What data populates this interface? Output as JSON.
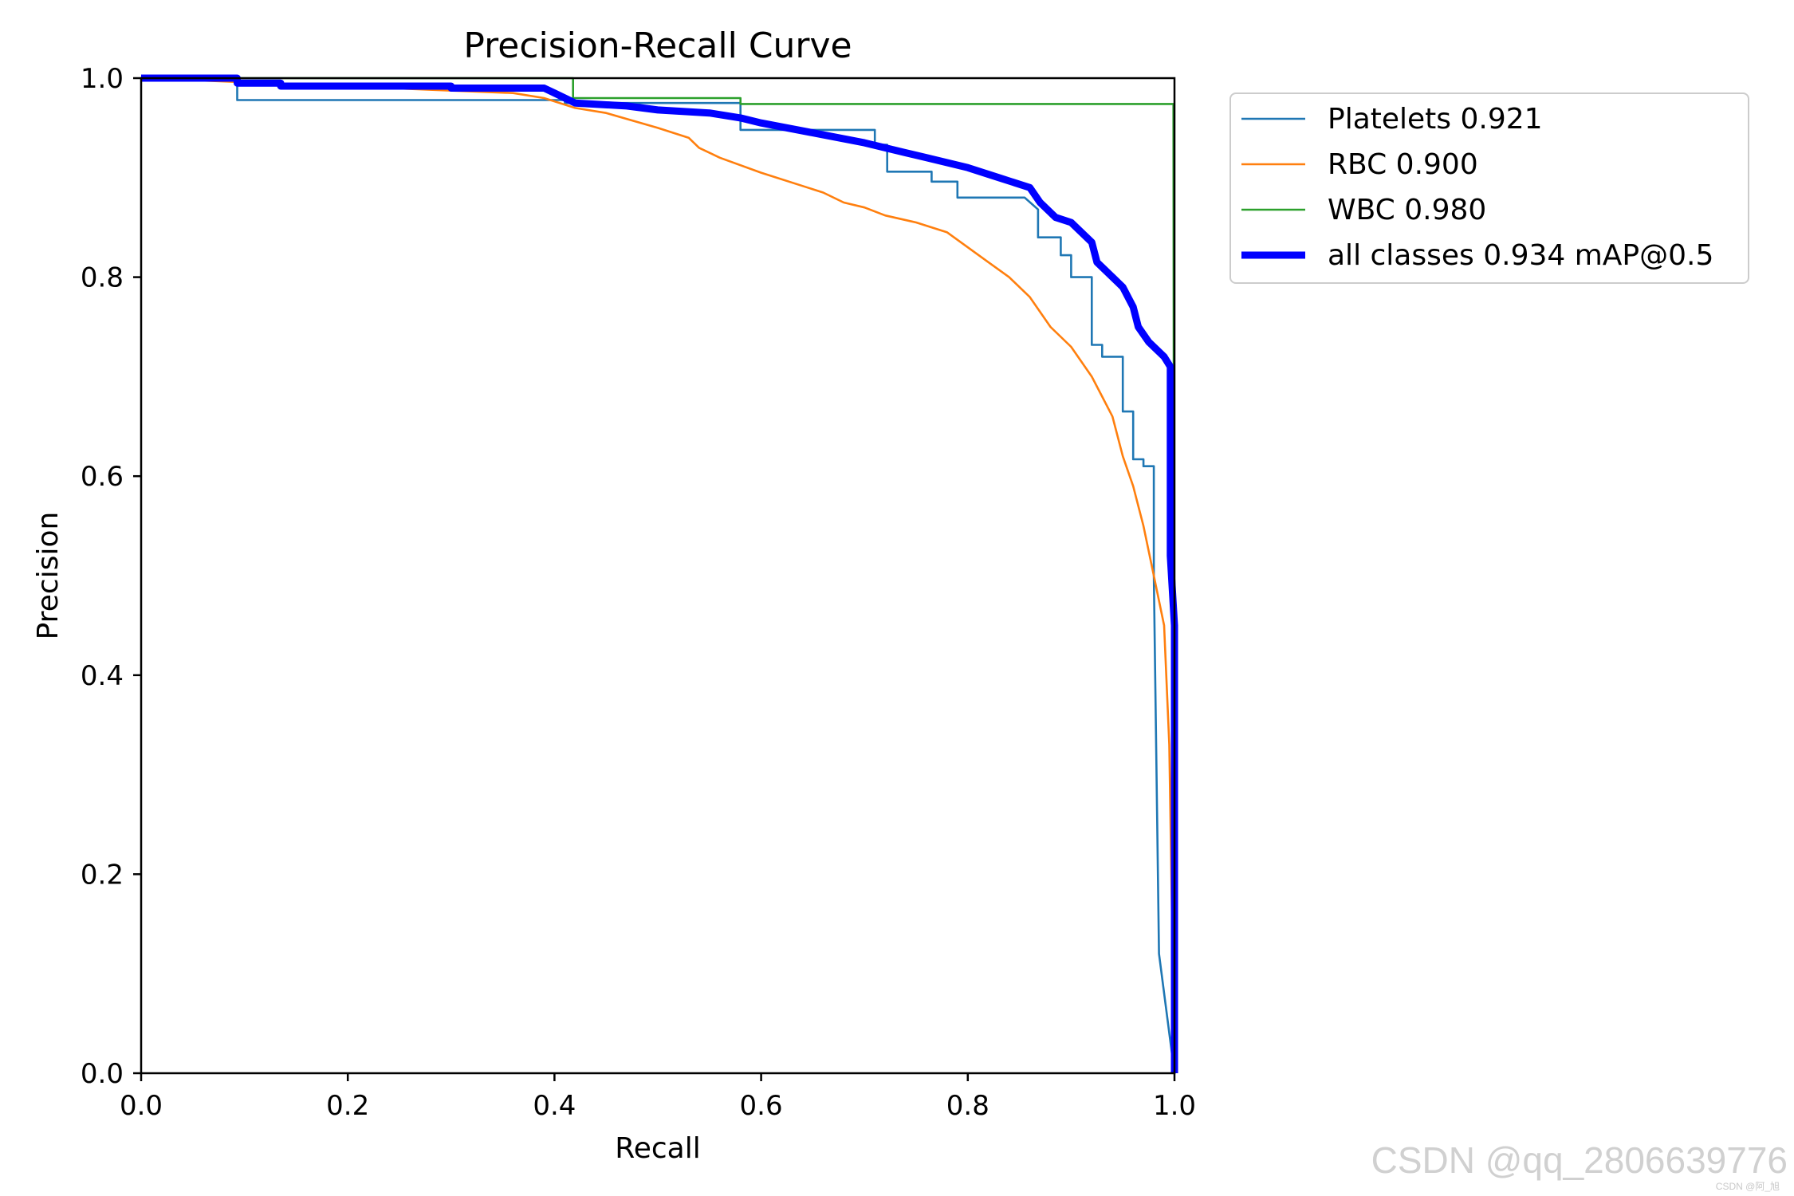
{
  "chart_data": {
    "type": "line",
    "title": "Precision-Recall Curve",
    "xlabel": "Recall",
    "ylabel": "Precision",
    "xlim": [
      0,
      1
    ],
    "ylim": [
      0,
      1
    ],
    "x_ticks": [
      "0.0",
      "0.2",
      "0.4",
      "0.6",
      "0.8",
      "1.0"
    ],
    "y_ticks": [
      "0.0",
      "0.2",
      "0.4",
      "0.6",
      "0.8",
      "1.0"
    ],
    "grid": false,
    "legend_position": "outside-top-right",
    "series": [
      {
        "name": "Platelets 0.921",
        "color": "#1f77b4",
        "width": "thin",
        "points": [
          [
            0,
            1.0
          ],
          [
            0.093,
            1.0
          ],
          [
            0.093,
            0.978
          ],
          [
            0.41,
            0.978
          ],
          [
            0.41,
            0.975
          ],
          [
            0.58,
            0.975
          ],
          [
            0.58,
            0.948
          ],
          [
            0.71,
            0.948
          ],
          [
            0.71,
            0.933
          ],
          [
            0.722,
            0.933
          ],
          [
            0.722,
            0.906
          ],
          [
            0.765,
            0.906
          ],
          [
            0.765,
            0.896
          ],
          [
            0.79,
            0.896
          ],
          [
            0.79,
            0.88
          ],
          [
            0.855,
            0.88
          ],
          [
            0.868,
            0.868
          ],
          [
            0.868,
            0.84
          ],
          [
            0.89,
            0.84
          ],
          [
            0.89,
            0.822
          ],
          [
            0.9,
            0.822
          ],
          [
            0.9,
            0.8
          ],
          [
            0.92,
            0.8
          ],
          [
            0.92,
            0.732
          ],
          [
            0.93,
            0.732
          ],
          [
            0.93,
            0.72
          ],
          [
            0.95,
            0.72
          ],
          [
            0.95,
            0.665
          ],
          [
            0.96,
            0.665
          ],
          [
            0.96,
            0.617
          ],
          [
            0.97,
            0.617
          ],
          [
            0.97,
            0.61
          ],
          [
            0.98,
            0.61
          ],
          [
            0.98,
            0.5
          ],
          [
            0.985,
            0.12
          ],
          [
            1.0,
            0.0
          ]
        ]
      },
      {
        "name": "RBC 0.900",
        "color": "#ff7f0e",
        "width": "thin",
        "points": [
          [
            0,
            1.0
          ],
          [
            0.36,
            0.985
          ],
          [
            0.39,
            0.98
          ],
          [
            0.42,
            0.97
          ],
          [
            0.45,
            0.965
          ],
          [
            0.5,
            0.95
          ],
          [
            0.53,
            0.94
          ],
          [
            0.54,
            0.93
          ],
          [
            0.56,
            0.92
          ],
          [
            0.6,
            0.905
          ],
          [
            0.66,
            0.885
          ],
          [
            0.68,
            0.875
          ],
          [
            0.7,
            0.87
          ],
          [
            0.72,
            0.862
          ],
          [
            0.75,
            0.855
          ],
          [
            0.78,
            0.845
          ],
          [
            0.8,
            0.83
          ],
          [
            0.82,
            0.815
          ],
          [
            0.84,
            0.8
          ],
          [
            0.86,
            0.78
          ],
          [
            0.87,
            0.765
          ],
          [
            0.88,
            0.75
          ],
          [
            0.9,
            0.73
          ],
          [
            0.91,
            0.715
          ],
          [
            0.92,
            0.7
          ],
          [
            0.93,
            0.68
          ],
          [
            0.94,
            0.66
          ],
          [
            0.95,
            0.62
          ],
          [
            0.96,
            0.59
          ],
          [
            0.97,
            0.55
          ],
          [
            0.98,
            0.5
          ],
          [
            0.99,
            0.45
          ],
          [
            0.995,
            0.33
          ],
          [
            1.0,
            0.0
          ]
        ]
      },
      {
        "name": "WBC 0.980",
        "color": "#2ca02c",
        "width": "thin",
        "points": [
          [
            0,
            1.0
          ],
          [
            0.418,
            1.0
          ],
          [
            0.418,
            0.98
          ],
          [
            0.58,
            0.98
          ],
          [
            0.58,
            0.974
          ],
          [
            0.999,
            0.974
          ],
          [
            1.0,
            0.0
          ]
        ]
      },
      {
        "name": "all classes 0.934 mAP@0.5",
        "color": "#0000ff",
        "width": "thick",
        "points": [
          [
            0,
            1.0
          ],
          [
            0.093,
            1.0
          ],
          [
            0.093,
            0.995
          ],
          [
            0.135,
            0.995
          ],
          [
            0.135,
            0.992
          ],
          [
            0.3,
            0.992
          ],
          [
            0.3,
            0.99
          ],
          [
            0.39,
            0.99
          ],
          [
            0.4,
            0.985
          ],
          [
            0.42,
            0.975
          ],
          [
            0.47,
            0.972
          ],
          [
            0.5,
            0.968
          ],
          [
            0.55,
            0.965
          ],
          [
            0.58,
            0.96
          ],
          [
            0.6,
            0.955
          ],
          [
            0.65,
            0.945
          ],
          [
            0.7,
            0.935
          ],
          [
            0.74,
            0.925
          ],
          [
            0.76,
            0.92
          ],
          [
            0.8,
            0.91
          ],
          [
            0.83,
            0.9
          ],
          [
            0.86,
            0.89
          ],
          [
            0.87,
            0.875
          ],
          [
            0.885,
            0.86
          ],
          [
            0.9,
            0.855
          ],
          [
            0.92,
            0.835
          ],
          [
            0.925,
            0.815
          ],
          [
            0.935,
            0.805
          ],
          [
            0.95,
            0.79
          ],
          [
            0.96,
            0.77
          ],
          [
            0.965,
            0.75
          ],
          [
            0.975,
            0.735
          ],
          [
            0.99,
            0.72
          ],
          [
            0.996,
            0.71
          ],
          [
            0.996,
            0.52
          ],
          [
            1.0,
            0.45
          ],
          [
            1.0,
            0.0
          ]
        ]
      }
    ]
  },
  "watermark": {
    "main": "CSDN @qq_2806639776",
    "small": "CSDN @阿_旭"
  }
}
